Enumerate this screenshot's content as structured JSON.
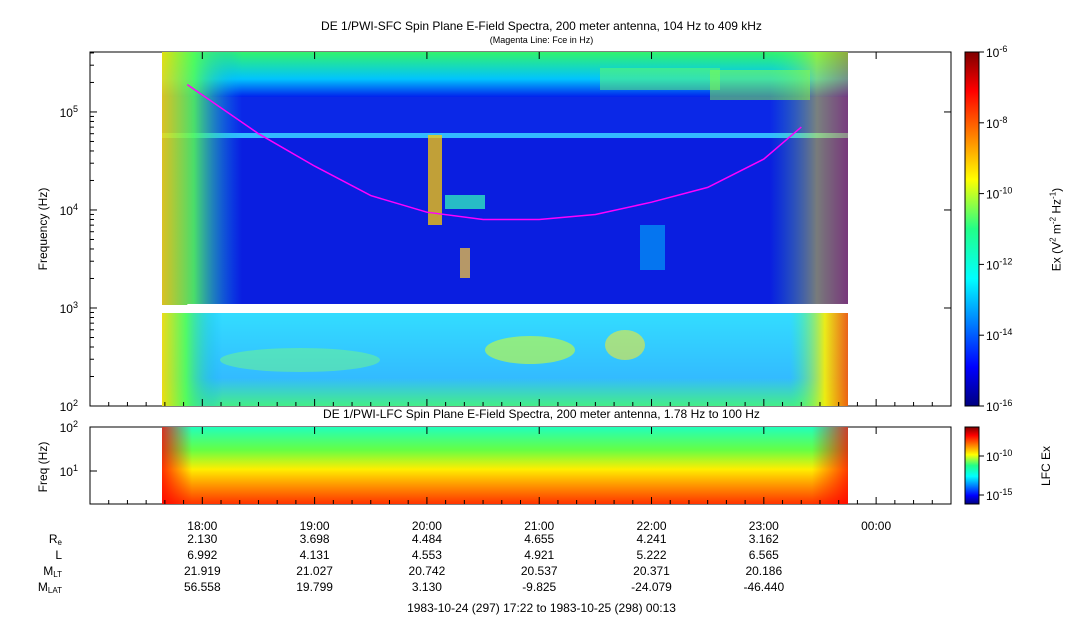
{
  "chart_data": [
    {
      "type": "heatmap",
      "title": "DE 1/PWI-SFC  Spin Plane E-Field Spectra, 200 meter antenna, 104 Hz to 409 kHz",
      "subtitle": "(Magenta Line: Fce in Hz)",
      "ylabel": "Frequency (Hz)",
      "yscale": "log",
      "ylim": [
        100,
        409000
      ],
      "ytick_labels": [
        "10^2",
        "10^3",
        "10^4",
        "10^5"
      ],
      "colorbar_label": "Ex (V^2 m^-2 Hz^-1)",
      "colorbar_scale": "log",
      "colorbar_range": [
        1e-16,
        1e-06
      ],
      "colorbar_tick_labels": [
        "10^-6",
        "10^-8",
        "10^-10",
        "10^-12",
        "10^-14",
        "10^-16"
      ],
      "fce_line": {
        "color": "#ff00ff",
        "x": [
          "17:52",
          "18:30",
          "19:00",
          "19:30",
          "20:00",
          "20:30",
          "21:00",
          "21:30",
          "22:00",
          "22:30",
          "23:00",
          "23:20"
        ],
        "y": [
          190000,
          60000,
          28000,
          14000,
          9500,
          8000,
          8000,
          9000,
          12000,
          17000,
          33000,
          70000
        ]
      }
    },
    {
      "type": "heatmap",
      "title": "DE 1/PWI-LFC  Spin Plane E-Field Spectra, 200 meter antenna, 1.78 Hz to 100 Hz",
      "ylabel": "Freq (Hz)",
      "yscale": "log",
      "ylim": [
        1.78,
        100
      ],
      "ytick_labels": [
        "10^1",
        "10^2"
      ],
      "colorbar_label": "LFC Ex",
      "colorbar_scale": "log",
      "colorbar_tick_labels": [
        "10^-10",
        "10^-15"
      ]
    }
  ],
  "x_axis": {
    "ticks": [
      "18:00",
      "19:00",
      "20:00",
      "21:00",
      "22:00",
      "23:00",
      "00:00"
    ],
    "range_label": "1983-10-24 (297) 17:22 to 1983-10-25 (298) 00:13"
  },
  "ephemeris": {
    "rows": [
      {
        "label": "R",
        "sub": "e",
        "values": [
          "2.130",
          "3.698",
          "4.484",
          "4.655",
          "4.241",
          "3.162"
        ]
      },
      {
        "label": "L",
        "sub": "",
        "values": [
          "6.992",
          "4.131",
          "4.553",
          "4.921",
          "5.222",
          "6.565"
        ]
      },
      {
        "label": "M",
        "sub": "LT",
        "values": [
          "21.919",
          "21.027",
          "20.742",
          "20.537",
          "20.371",
          "20.186"
        ]
      },
      {
        "label": "M",
        "sub": "LAT",
        "values": [
          "56.558",
          "19.799",
          "3.130",
          "-9.825",
          "-24.079",
          "-46.440"
        ]
      }
    ]
  }
}
